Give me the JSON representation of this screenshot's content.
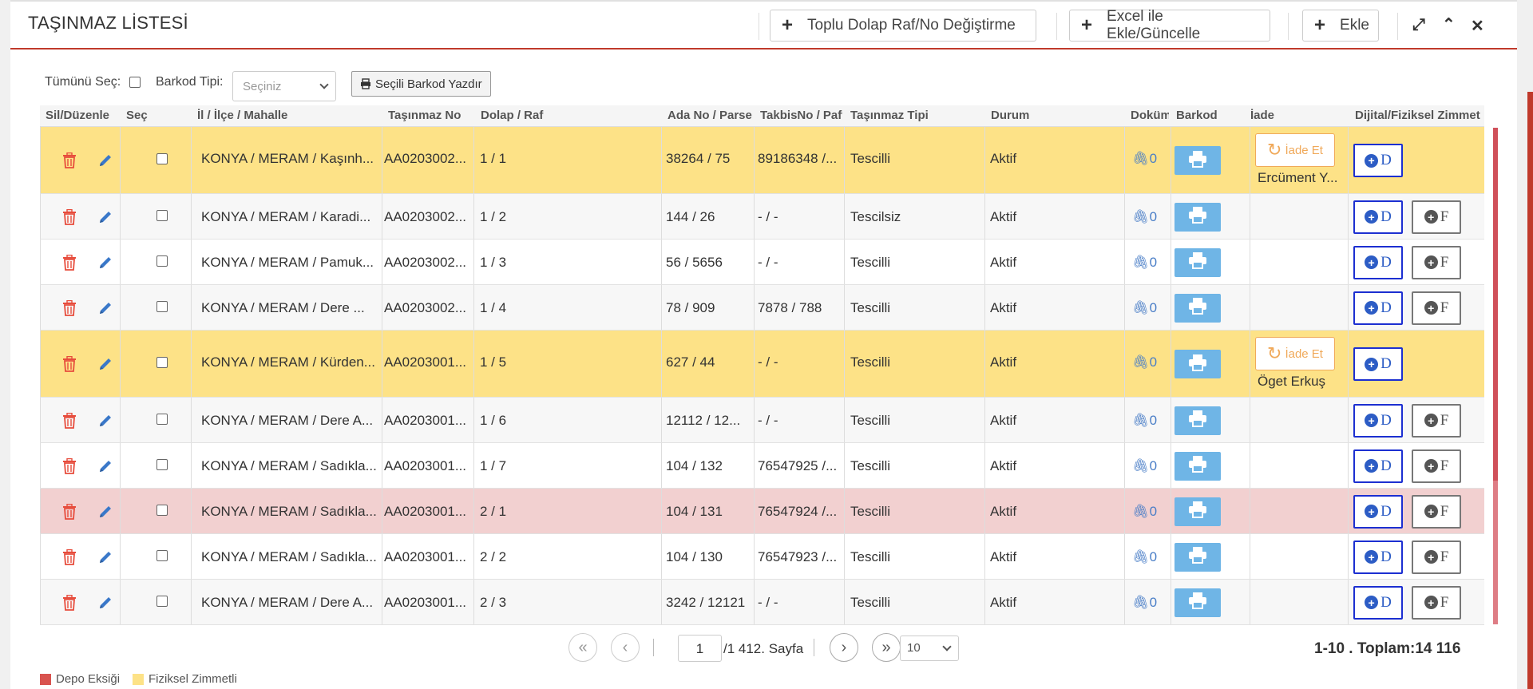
{
  "header": {
    "title": "TAŞINMAZ LİSTESİ",
    "bulk_button": "Toplu Dolap Raf/No Değiştirme",
    "excel_button": "Excel ile Ekle/Güncelle",
    "add_button": "Ekle"
  },
  "toolbar": {
    "select_all_label": "Tümünü Seç:",
    "barcode_type_label": "Barkod Tipi:",
    "barcode_type_placeholder": "Seçiniz",
    "print_selected_label": "Seçili Barkod Yazdır"
  },
  "columns": [
    "Sil/Düzenle",
    "Seç",
    "İl / İlçe / Mahalle",
    "Taşınmaz No",
    "Dolap / Raf",
    "Ada No / Parsel",
    "TakbisNo / Pafta",
    "Taşınmaz Tipi",
    "Durum",
    "Doküman",
    "Barkod",
    "İade",
    "Dijital/Fiziksel Zimmet"
  ],
  "rows": [
    {
      "location": "KONYA / MERAM / Kaşınh...",
      "no": "AA0203002...",
      "shelf": "1 / 1",
      "parcel": "38264 / 75",
      "takbis": "89186348 /...",
      "type": "Tescilli",
      "status": "Aktif",
      "docs": "0",
      "iade_label": "İade Et",
      "iade_person": "Ercüment Y...",
      "d_label": "D",
      "f_label": ""
    },
    {
      "location": "KONYA / MERAM / Karadi...",
      "no": "AA0203002...",
      "shelf": "1 / 2",
      "parcel": "144 / 26",
      "takbis": "- / -",
      "type": "Tescilsiz",
      "status": "Aktif",
      "docs": "0",
      "iade_label": "",
      "iade_person": "",
      "d_label": "D",
      "f_label": "F"
    },
    {
      "location": "KONYA / MERAM / Pamuk...",
      "no": "AA0203002...",
      "shelf": "1 / 3",
      "parcel": "56 / 5656",
      "takbis": "- / -",
      "type": "Tescilli",
      "status": "Aktif",
      "docs": "0",
      "iade_label": "",
      "iade_person": "",
      "d_label": "D",
      "f_label": "F"
    },
    {
      "location": "KONYA / MERAM / Dere ...",
      "no": "AA0203002...",
      "shelf": "1 / 4",
      "parcel": "78 / 909",
      "takbis": "7878 / 788",
      "type": "Tescilli",
      "status": "Aktif",
      "docs": "0",
      "iade_label": "",
      "iade_person": "",
      "d_label": "D",
      "f_label": "F"
    },
    {
      "location": "KONYA / MERAM / Kürden...",
      "no": "AA0203001...",
      "shelf": "1 / 5",
      "parcel": "627 / 44",
      "takbis": "- / -",
      "type": "Tescilli",
      "status": "Aktif",
      "docs": "0",
      "iade_label": "İade Et",
      "iade_person": "Öget Erkuş",
      "d_label": "D",
      "f_label": ""
    },
    {
      "location": "KONYA / MERAM / Dere A...",
      "no": "AA0203001...",
      "shelf": "1 / 6",
      "parcel": "12112 / 12...",
      "takbis": "- / -",
      "type": "Tescilli",
      "status": "Aktif",
      "docs": "0",
      "iade_label": "",
      "iade_person": "",
      "d_label": "D",
      "f_label": "F"
    },
    {
      "location": "KONYA / MERAM / Sadıkla...",
      "no": "AA0203001...",
      "shelf": "1 / 7",
      "parcel": "104 / 132",
      "takbis": "76547925 /...",
      "type": "Tescilli",
      "status": "Aktif",
      "docs": "0",
      "iade_label": "",
      "iade_person": "",
      "d_label": "D",
      "f_label": "F"
    },
    {
      "location": "KONYA / MERAM / Sadıkla...",
      "no": "AA0203001...",
      "shelf": "2 / 1",
      "parcel": "104 / 131",
      "takbis": "76547924 /...",
      "type": "Tescilli",
      "status": "Aktif",
      "docs": "0",
      "iade_label": "",
      "iade_person": "",
      "d_label": "D",
      "f_label": "F"
    },
    {
      "location": "KONYA / MERAM / Sadıkla...",
      "no": "AA0203001...",
      "shelf": "2 / 2",
      "parcel": "104 / 130",
      "takbis": "76547923 /...",
      "type": "Tescilli",
      "status": "Aktif",
      "docs": "0",
      "iade_label": "",
      "iade_person": "",
      "d_label": "D",
      "f_label": "F"
    },
    {
      "location": "KONYA / MERAM / Dere A...",
      "no": "AA0203001...",
      "shelf": "2 / 3",
      "parcel": "3242 / 12121",
      "takbis": "- / -",
      "type": "Tescilli",
      "status": "Aktif",
      "docs": "0",
      "iade_label": "",
      "iade_person": "",
      "d_label": "D",
      "f_label": "F"
    }
  ],
  "row_styles": [
    "yellow",
    "odd",
    "even",
    "odd",
    "yellow",
    "odd",
    "even",
    "pink",
    "even",
    "odd"
  ],
  "pagination": {
    "current_page": "1",
    "page_suffix": "/1 412. Sayfa",
    "page_size": "10",
    "summary": "1-10 . Toplam:14 116"
  },
  "legend": {
    "missing": "Depo Eksiği",
    "physical": "Fiziksel Zimmetli",
    "missing_color": "#d9534f",
    "physical_color": "#fde287"
  }
}
